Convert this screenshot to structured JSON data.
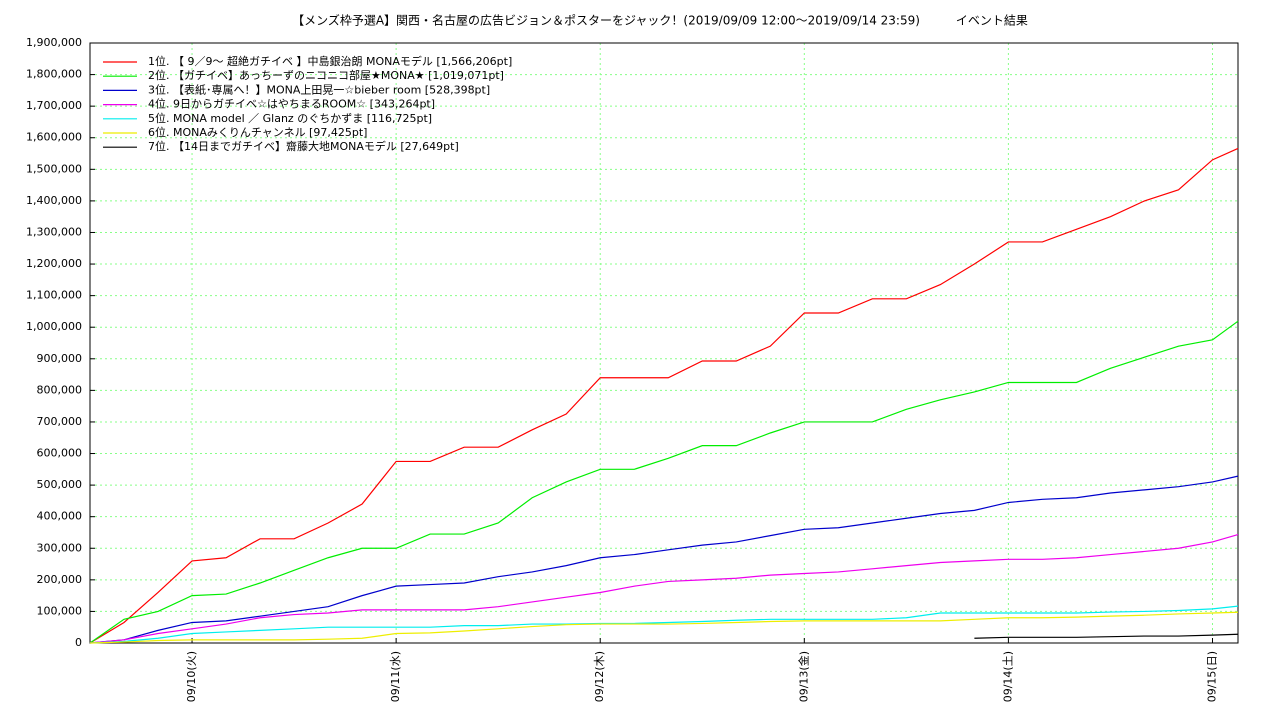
{
  "chart_data": {
    "type": "line",
    "title": "【メンズ枠予選A】関西・名古屋の広告ビジョン＆ポスターをジャック！(2019/09/09 12:00～2019/09/14 23:59)　　　イベント結果",
    "x": [
      12,
      16,
      20,
      24,
      28,
      32,
      36,
      40,
      44,
      48,
      52,
      56,
      60,
      64,
      68,
      72,
      76,
      80,
      84,
      88,
      92,
      96,
      100,
      104,
      108,
      112,
      116,
      120,
      124,
      128,
      132,
      136,
      140,
      144,
      147
    ],
    "xlim": [
      12,
      147
    ],
    "xticks": [
      {
        "value": 24,
        "label": "09/10(火)"
      },
      {
        "value": 48,
        "label": "09/11(水)"
      },
      {
        "value": 72,
        "label": "09/12(木)"
      },
      {
        "value": 96,
        "label": "09/13(金)"
      },
      {
        "value": 120,
        "label": "09/14(土)"
      },
      {
        "value": 144,
        "label": "09/15(日)"
      }
    ],
    "ylim": [
      0,
      1900000
    ],
    "yticks": [
      0,
      {
        "value": 100000,
        "label": "100,000"
      },
      {
        "value": 200000,
        "label": "200,000"
      },
      {
        "value": 300000,
        "label": "300,000"
      },
      {
        "value": 400000,
        "label": "400,000"
      },
      {
        "value": 500000,
        "label": "500,000"
      },
      {
        "value": 600000,
        "label": "600,000"
      },
      {
        "value": 700000,
        "label": "700,000"
      },
      {
        "value": 800000,
        "label": "800,000"
      },
      {
        "value": 900000,
        "label": "900,000"
      },
      {
        "value": 1000000,
        "label": "1,000,000"
      },
      {
        "value": 1100000,
        "label": "1,100,000"
      },
      {
        "value": 1200000,
        "label": "1,200,000"
      },
      {
        "value": 1300000,
        "label": "1,300,000"
      },
      {
        "value": 1400000,
        "label": "1,400,000"
      },
      {
        "value": 1500000,
        "label": "1,500,000"
      },
      {
        "value": 1600000,
        "label": "1,600,000"
      },
      {
        "value": 1700000,
        "label": "1,700,000"
      },
      {
        "value": 1800000,
        "label": "1,800,000"
      },
      {
        "value": 1900000,
        "label": "1,900,000"
      }
    ],
    "grid": true,
    "legend": "top-left",
    "series": [
      {
        "name": "1位. 【 9／9～ 超絶ガチイベ 】中島銀治朗  MONAモデル [1,566,206pt]",
        "color": "#ff0000",
        "values": [
          0,
          65000,
          160000,
          260000,
          270000,
          330000,
          330000,
          380000,
          440000,
          575000,
          575000,
          620000,
          620000,
          675000,
          725000,
          840000,
          840000,
          840000,
          893000,
          893000,
          940000,
          1045000,
          1045000,
          1090000,
          1090000,
          1135000,
          1200000,
          1270000,
          1270000,
          1310000,
          1350000,
          1400000,
          1435000,
          1530000,
          1566206
        ]
      },
      {
        "name": "2位. 【ガチイベ】あっちーずのニコニコ部屋★MONA★ [1,019,071pt]",
        "color": "#00ee00",
        "values": [
          0,
          75000,
          100000,
          150000,
          155000,
          190000,
          230000,
          270000,
          300000,
          300000,
          345000,
          345000,
          380000,
          460000,
          510000,
          550000,
          550000,
          585000,
          625000,
          625000,
          665000,
          700000,
          700000,
          700000,
          740000,
          770000,
          795000,
          825000,
          825000,
          825000,
          870000,
          905000,
          940000,
          960000,
          1019071
        ]
      },
      {
        "name": "3位. 【表紙･専属へ！】MONA上田晃一☆bieber room [528,398pt]",
        "color": "#0000cc",
        "values": [
          0,
          10000,
          40000,
          65000,
          70000,
          85000,
          100000,
          115000,
          150000,
          180000,
          185000,
          190000,
          210000,
          225000,
          245000,
          270000,
          280000,
          295000,
          310000,
          320000,
          340000,
          360000,
          365000,
          380000,
          395000,
          410000,
          420000,
          445000,
          455000,
          460000,
          475000,
          485000,
          495000,
          510000,
          528398
        ]
      },
      {
        "name": "4位. 9日からガチイベ☆はやちまるROOM☆ [343,264pt]",
        "color": "#ee00ee",
        "values": [
          0,
          10000,
          30000,
          45000,
          60000,
          80000,
          90000,
          95000,
          105000,
          105000,
          105000,
          105000,
          115000,
          130000,
          145000,
          160000,
          180000,
          195000,
          200000,
          205000,
          215000,
          220000,
          225000,
          235000,
          245000,
          255000,
          260000,
          265000,
          265000,
          270000,
          280000,
          290000,
          300000,
          320000,
          343264
        ]
      },
      {
        "name": "5位. MONA model ／ Glanz のぐちかずま [116,725pt]",
        "color": "#00eeee",
        "values": [
          0,
          5000,
          15000,
          30000,
          35000,
          40000,
          45000,
          50000,
          50000,
          50000,
          50000,
          55000,
          55000,
          60000,
          60000,
          62000,
          62000,
          65000,
          68000,
          72000,
          75000,
          75000,
          75000,
          75000,
          80000,
          95000,
          95000,
          95000,
          95000,
          95000,
          98000,
          100000,
          103000,
          108000,
          116725
        ]
      },
      {
        "name": "6位. MONAみくりんチャンネル  [97,425pt]",
        "color": "#eeee00",
        "values": [
          0,
          3000,
          8000,
          10000,
          10000,
          10000,
          10000,
          12000,
          15000,
          30000,
          32000,
          38000,
          45000,
          52000,
          58000,
          60000,
          60000,
          60000,
          62000,
          65000,
          68000,
          70000,
          70000,
          70000,
          70000,
          70000,
          75000,
          80000,
          80000,
          82000,
          85000,
          88000,
          92000,
          95000,
          97425
        ]
      },
      {
        "name": "7位. 【14日までガチイベ】齋藤大地MONAモデル [27,649pt]",
        "color": "#000000",
        "values": [
          null,
          null,
          null,
          null,
          null,
          null,
          null,
          null,
          null,
          null,
          null,
          null,
          null,
          null,
          null,
          null,
          null,
          null,
          null,
          null,
          null,
          null,
          null,
          null,
          null,
          null,
          15000,
          18000,
          18000,
          18000,
          20000,
          22000,
          22000,
          25000,
          27649
        ]
      }
    ]
  }
}
